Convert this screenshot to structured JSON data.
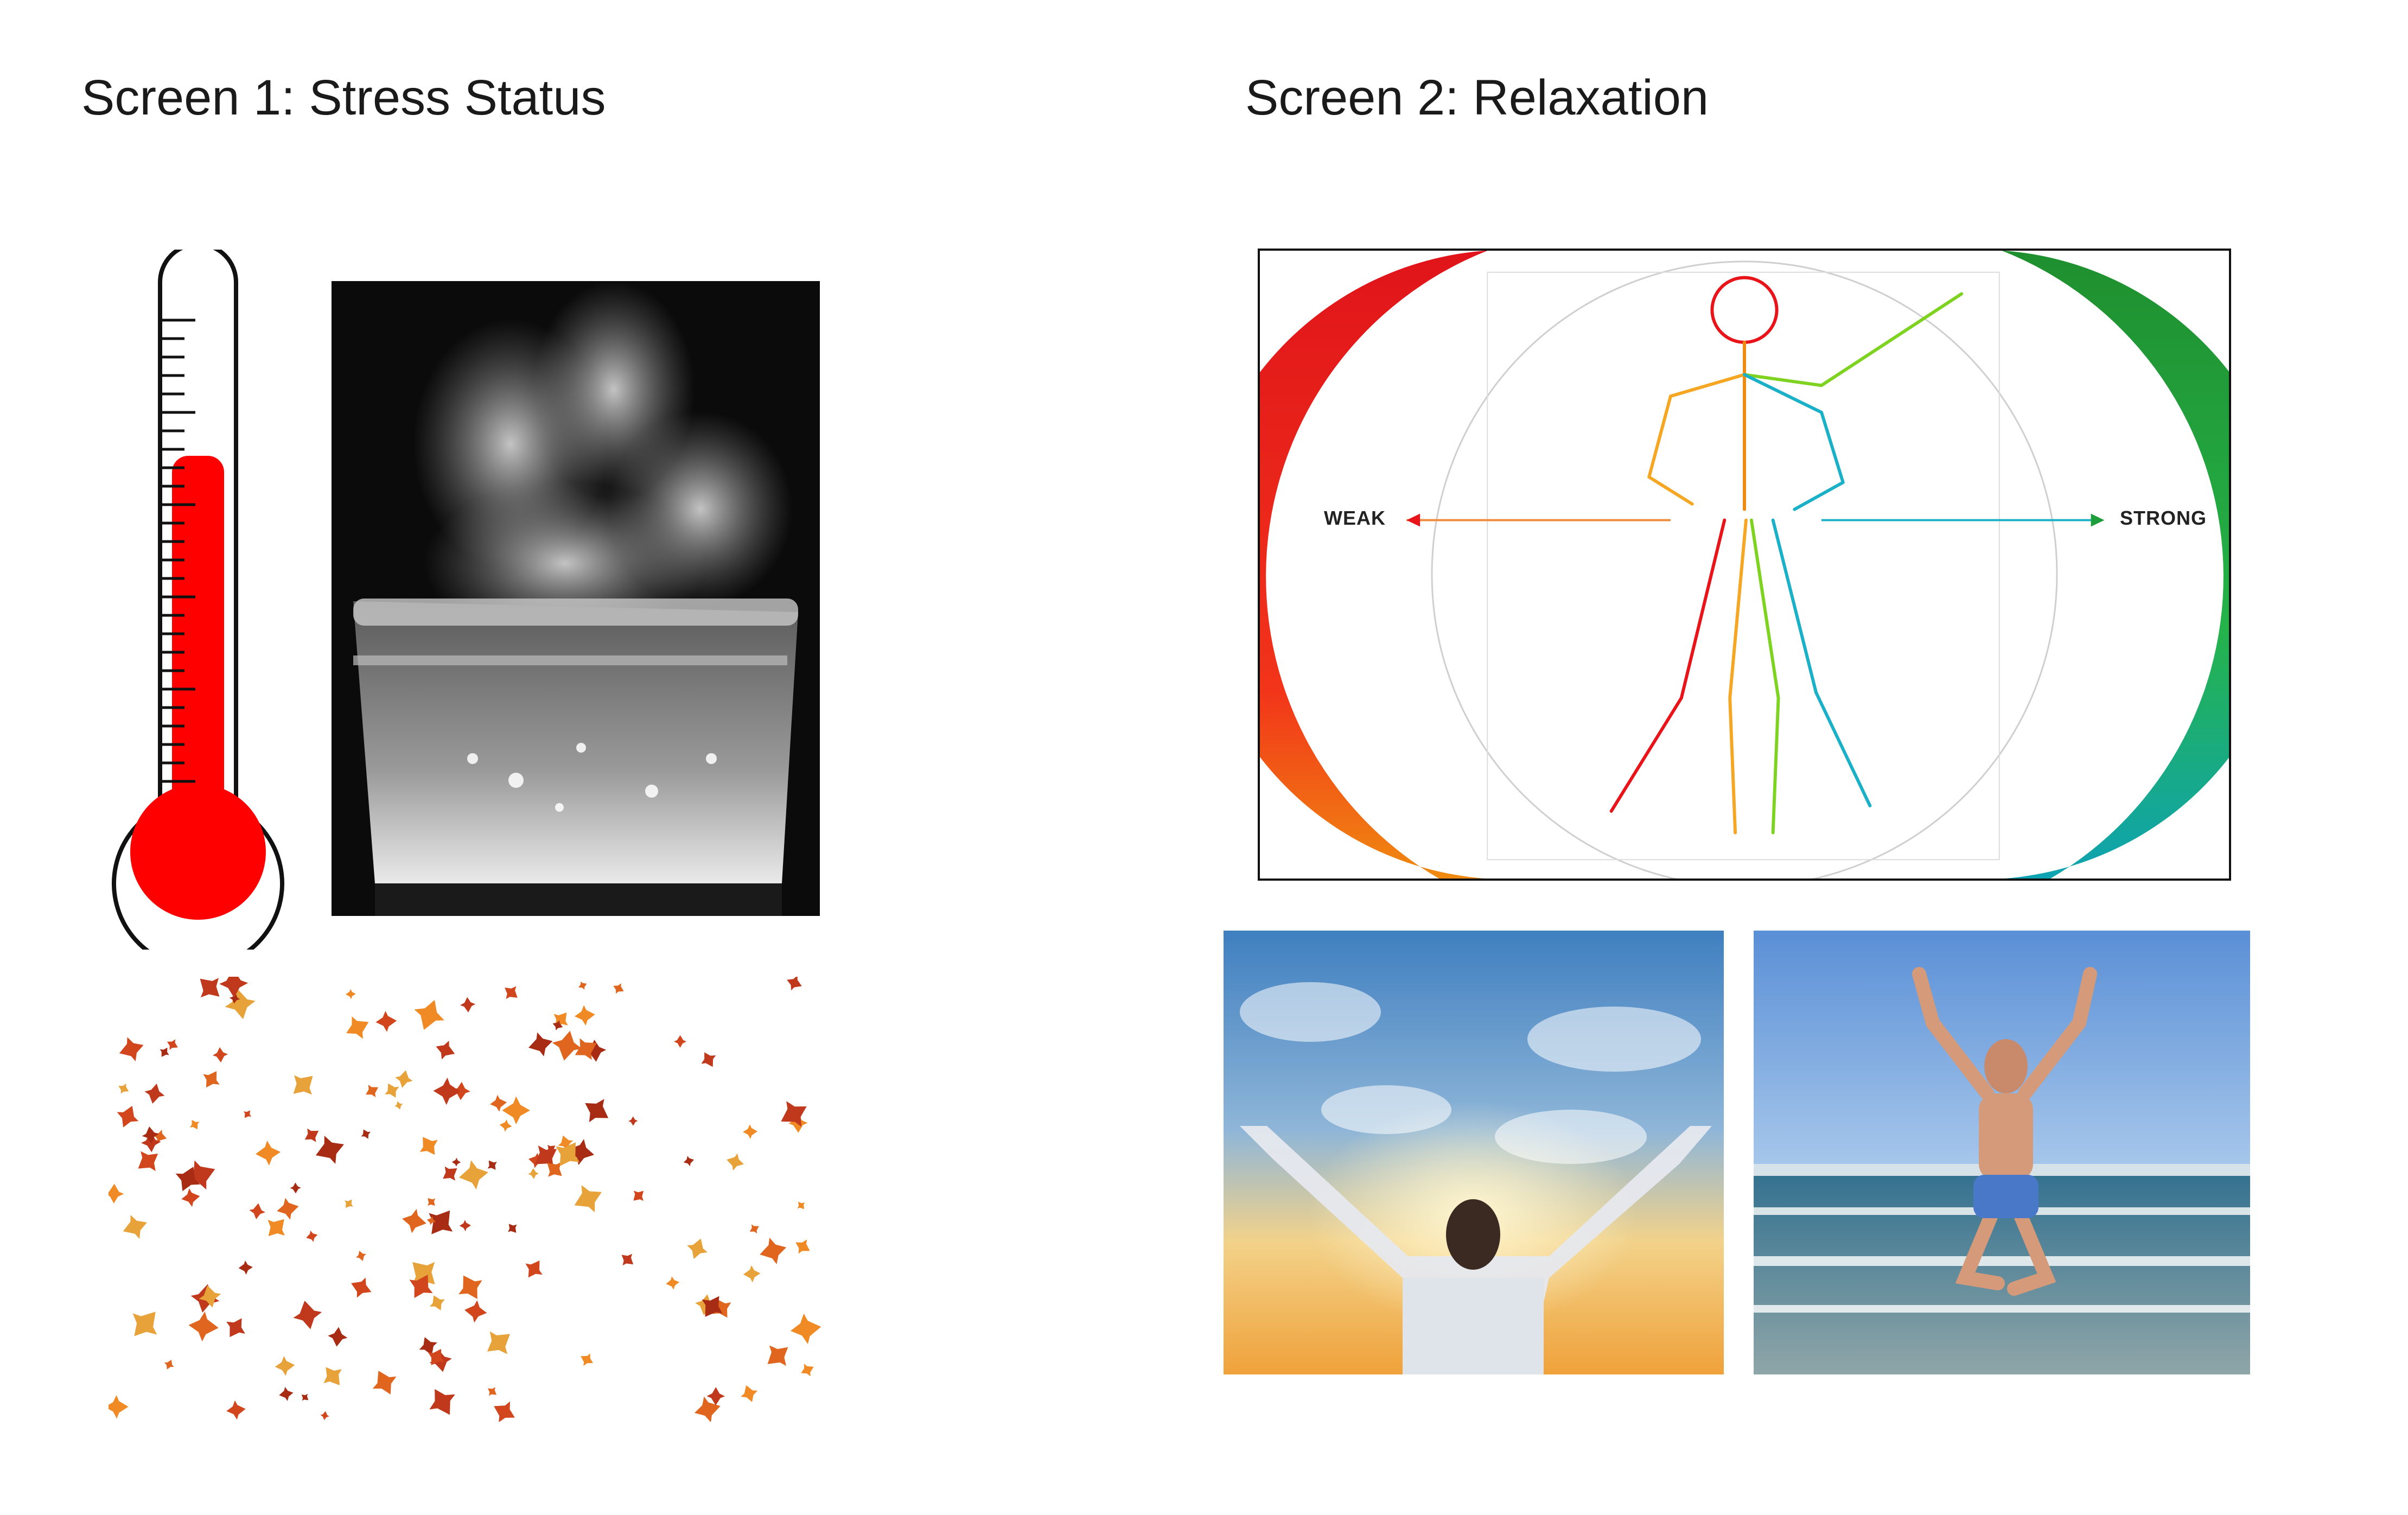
{
  "screen1": {
    "title": "Screen 1: Stress Status",
    "images": {
      "thermometer": "thermometer-icon",
      "pot": "boiling-pot-image",
      "leaves": "falling-leaves-image"
    }
  },
  "screen2": {
    "title": "Screen 2: Relaxation",
    "diagram": {
      "weak_label": "WEAK",
      "strong_label": "STRONG"
    },
    "images": {
      "sky": "arms-raised-sky-image",
      "beach": "jumping-beach-image"
    }
  },
  "colors": {
    "thermo_red": "#ff0000",
    "weak_red": "#e8141a",
    "strong_green": "#1e9e3a",
    "teal": "#12a3b8"
  }
}
